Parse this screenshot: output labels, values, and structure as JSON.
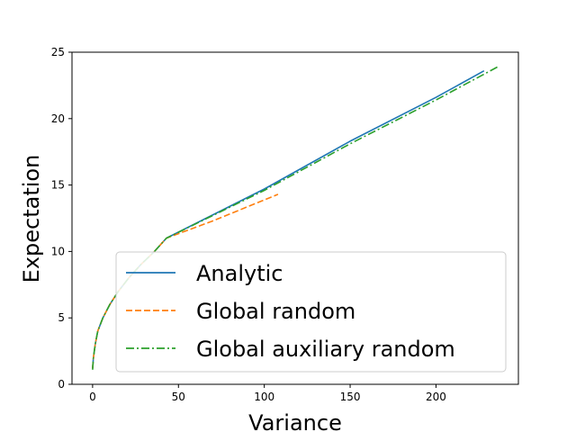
{
  "chart_data": {
    "type": "line",
    "title": "",
    "xlabel": "Variance",
    "ylabel": "Expectation",
    "xlim": [
      -12,
      248
    ],
    "ylim": [
      0,
      25
    ],
    "xticks": [
      "0",
      "50",
      "100",
      "150",
      "200"
    ],
    "xtick_values": [
      0,
      50,
      100,
      150,
      200
    ],
    "yticks": [
      "0",
      "5",
      "10",
      "15",
      "20",
      "25"
    ],
    "ytick_values": [
      0,
      5,
      10,
      15,
      20,
      25
    ],
    "grid": false,
    "legend": {
      "placement": "lower-right"
    },
    "series": [
      {
        "name": "Analytic",
        "color": "#1f77b4",
        "dash": "solid",
        "points": [
          [
            0,
            1.2
          ],
          [
            0.5,
            2.0
          ],
          [
            1.5,
            3.0
          ],
          [
            3,
            4.0
          ],
          [
            6,
            5.0
          ],
          [
            10,
            6.0
          ],
          [
            15,
            7.0
          ],
          [
            21,
            8.0
          ],
          [
            28,
            9.0
          ],
          [
            36,
            10.0
          ],
          [
            43,
            11.0
          ],
          [
            100,
            14.7
          ],
          [
            150,
            18.3
          ],
          [
            200,
            21.6
          ],
          [
            228,
            23.6
          ]
        ]
      },
      {
        "name": "Global random",
        "color": "#ff7f0e",
        "dash": "dashed",
        "points": [
          [
            0,
            1.2
          ],
          [
            0.5,
            2.0
          ],
          [
            1.5,
            3.0
          ],
          [
            3,
            4.0
          ],
          [
            6,
            5.0
          ],
          [
            10,
            6.0
          ],
          [
            15,
            7.0
          ],
          [
            21,
            8.0
          ],
          [
            28,
            9.0
          ],
          [
            36,
            10.0
          ],
          [
            43,
            11.0
          ],
          [
            70,
            12.3
          ],
          [
            108,
            14.3
          ]
        ]
      },
      {
        "name": "Global auxiliary random",
        "color": "#2ca02c",
        "dash": "dashdot",
        "points": [
          [
            0,
            1.1
          ],
          [
            0.5,
            2.0
          ],
          [
            1.5,
            3.0
          ],
          [
            3,
            4.0
          ],
          [
            6,
            5.0
          ],
          [
            10,
            6.0
          ],
          [
            15,
            7.0
          ],
          [
            21,
            8.0
          ],
          [
            28,
            9.0
          ],
          [
            36,
            10.0
          ],
          [
            43,
            11.0
          ],
          [
            100,
            14.6
          ],
          [
            150,
            18.1
          ],
          [
            200,
            21.4
          ],
          [
            236,
            23.9
          ]
        ]
      }
    ]
  }
}
